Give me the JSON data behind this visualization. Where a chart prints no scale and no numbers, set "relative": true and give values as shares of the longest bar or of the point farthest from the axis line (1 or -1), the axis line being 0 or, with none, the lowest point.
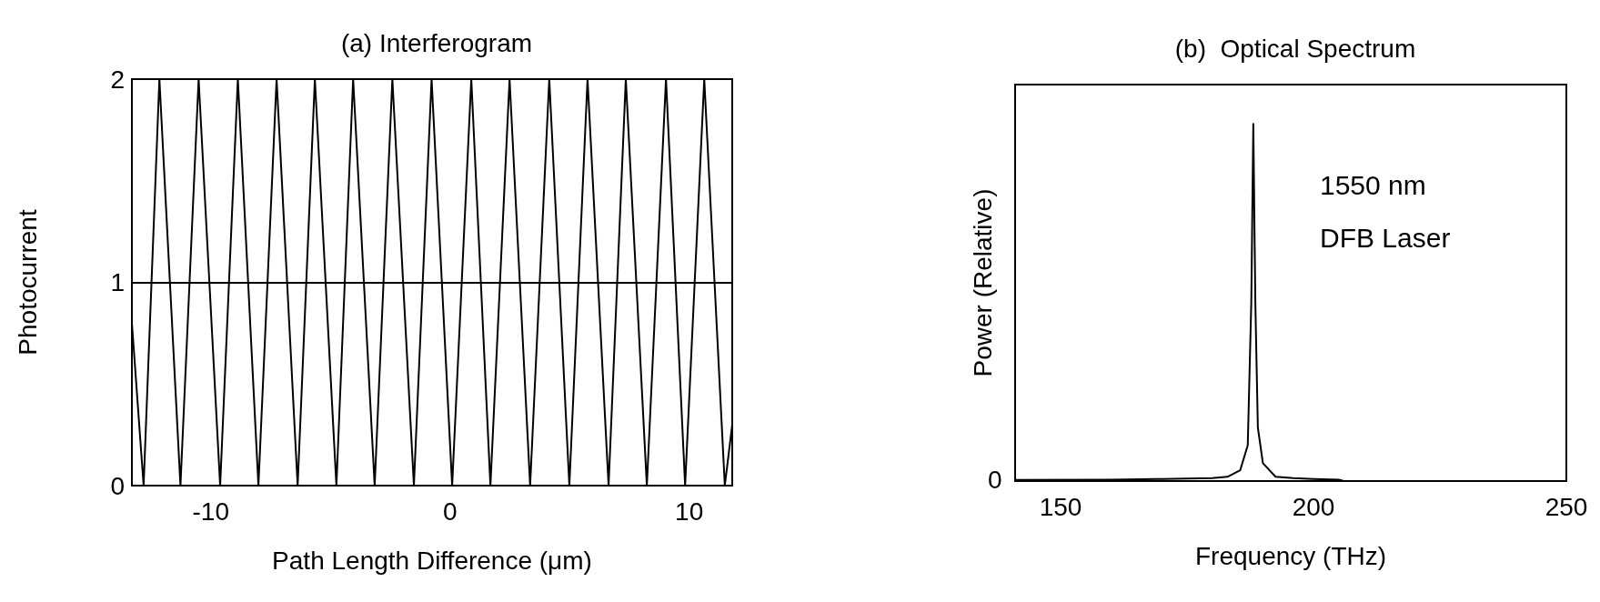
{
  "chart_data": [
    {
      "type": "line",
      "title": "(a) Interferogram",
      "xlabel": "Path Length Difference (μm)",
      "ylabel": "Photocurrent",
      "series": [
        {
          "color": "#000000",
          "x": [
            -13.3,
            -12.81,
            -12.48,
            -12.15,
            -11.71,
            -11.27,
            -10.89,
            -10.51,
            -10.06,
            -9.61,
            -9.24,
            -8.87,
            -8.44,
            -8.01,
            -7.63,
            -7.25,
            -6.81,
            -6.37,
            -6.01,
            -5.65,
            -5.2,
            -4.75,
            -4.4,
            -4.05,
            -3.6,
            -3.15,
            -2.78,
            -2.41,
            -1.96,
            -1.51,
            -1.14,
            -0.77,
            -0.34,
            0.09,
            0.49,
            0.89,
            1.29,
            1.69,
            2.09,
            2.49,
            2.92,
            3.35,
            3.75,
            4.15,
            4.57,
            4.99,
            5.37,
            5.75,
            6.19,
            6.63,
            6.99,
            7.35,
            7.79,
            8.23,
            8.63,
            9.03,
            9.43,
            9.83,
            10.23,
            10.63,
            11.06,
            11.49,
            11.8
          ],
          "values": [
            0.8,
            0,
            1,
            2,
            1,
            0,
            1,
            2,
            1,
            0,
            1,
            2,
            1,
            0,
            1,
            2,
            1,
            0,
            1,
            2,
            1,
            0,
            1,
            2,
            1,
            0,
            1,
            2,
            1,
            0,
            1,
            2,
            1,
            0,
            1,
            2,
            1,
            0,
            1,
            2,
            1,
            0,
            1,
            2,
            1,
            0,
            1,
            2,
            1,
            0,
            1,
            2,
            1,
            0,
            1,
            2,
            1,
            0,
            1,
            2,
            1,
            0,
            0.3
          ]
        }
      ],
      "ref_lines": [
        {
          "axis": "y",
          "value": 1,
          "color": "#000000"
        }
      ],
      "xlim": [
        -13.3,
        11.8
      ],
      "xticks": [
        -10,
        0,
        10
      ],
      "ylim": [
        0,
        2
      ],
      "yticks": [
        0,
        1,
        2
      ],
      "grid": false,
      "marker": "none"
    },
    {
      "type": "line",
      "title": "(b)  Optical Spectrum",
      "xlabel": "Frequency (THz)",
      "ylabel": "Power (Relative)",
      "relative": true,
      "series": [
        {
          "color": "#000000",
          "x": [
            141,
            160,
            170,
            180,
            183,
            185.5,
            187,
            187.7,
            188.1,
            188.5,
            189,
            190,
            192.5,
            196,
            200,
            205,
            206
          ],
          "values": [
            0.003,
            0.004,
            0.006,
            0.008,
            0.012,
            0.03,
            0.1,
            0.5,
            1,
            0.5,
            0.15,
            0.05,
            0.012,
            0.008,
            0.006,
            0.004,
            0
          ]
        }
      ],
      "annotations": [
        "0",
        "1550 nm",
        "DFB Laser"
      ],
      "xlim": [
        141,
        250
      ],
      "xticks": [
        150,
        200,
        250
      ],
      "grid": false,
      "marker": "none"
    }
  ]
}
